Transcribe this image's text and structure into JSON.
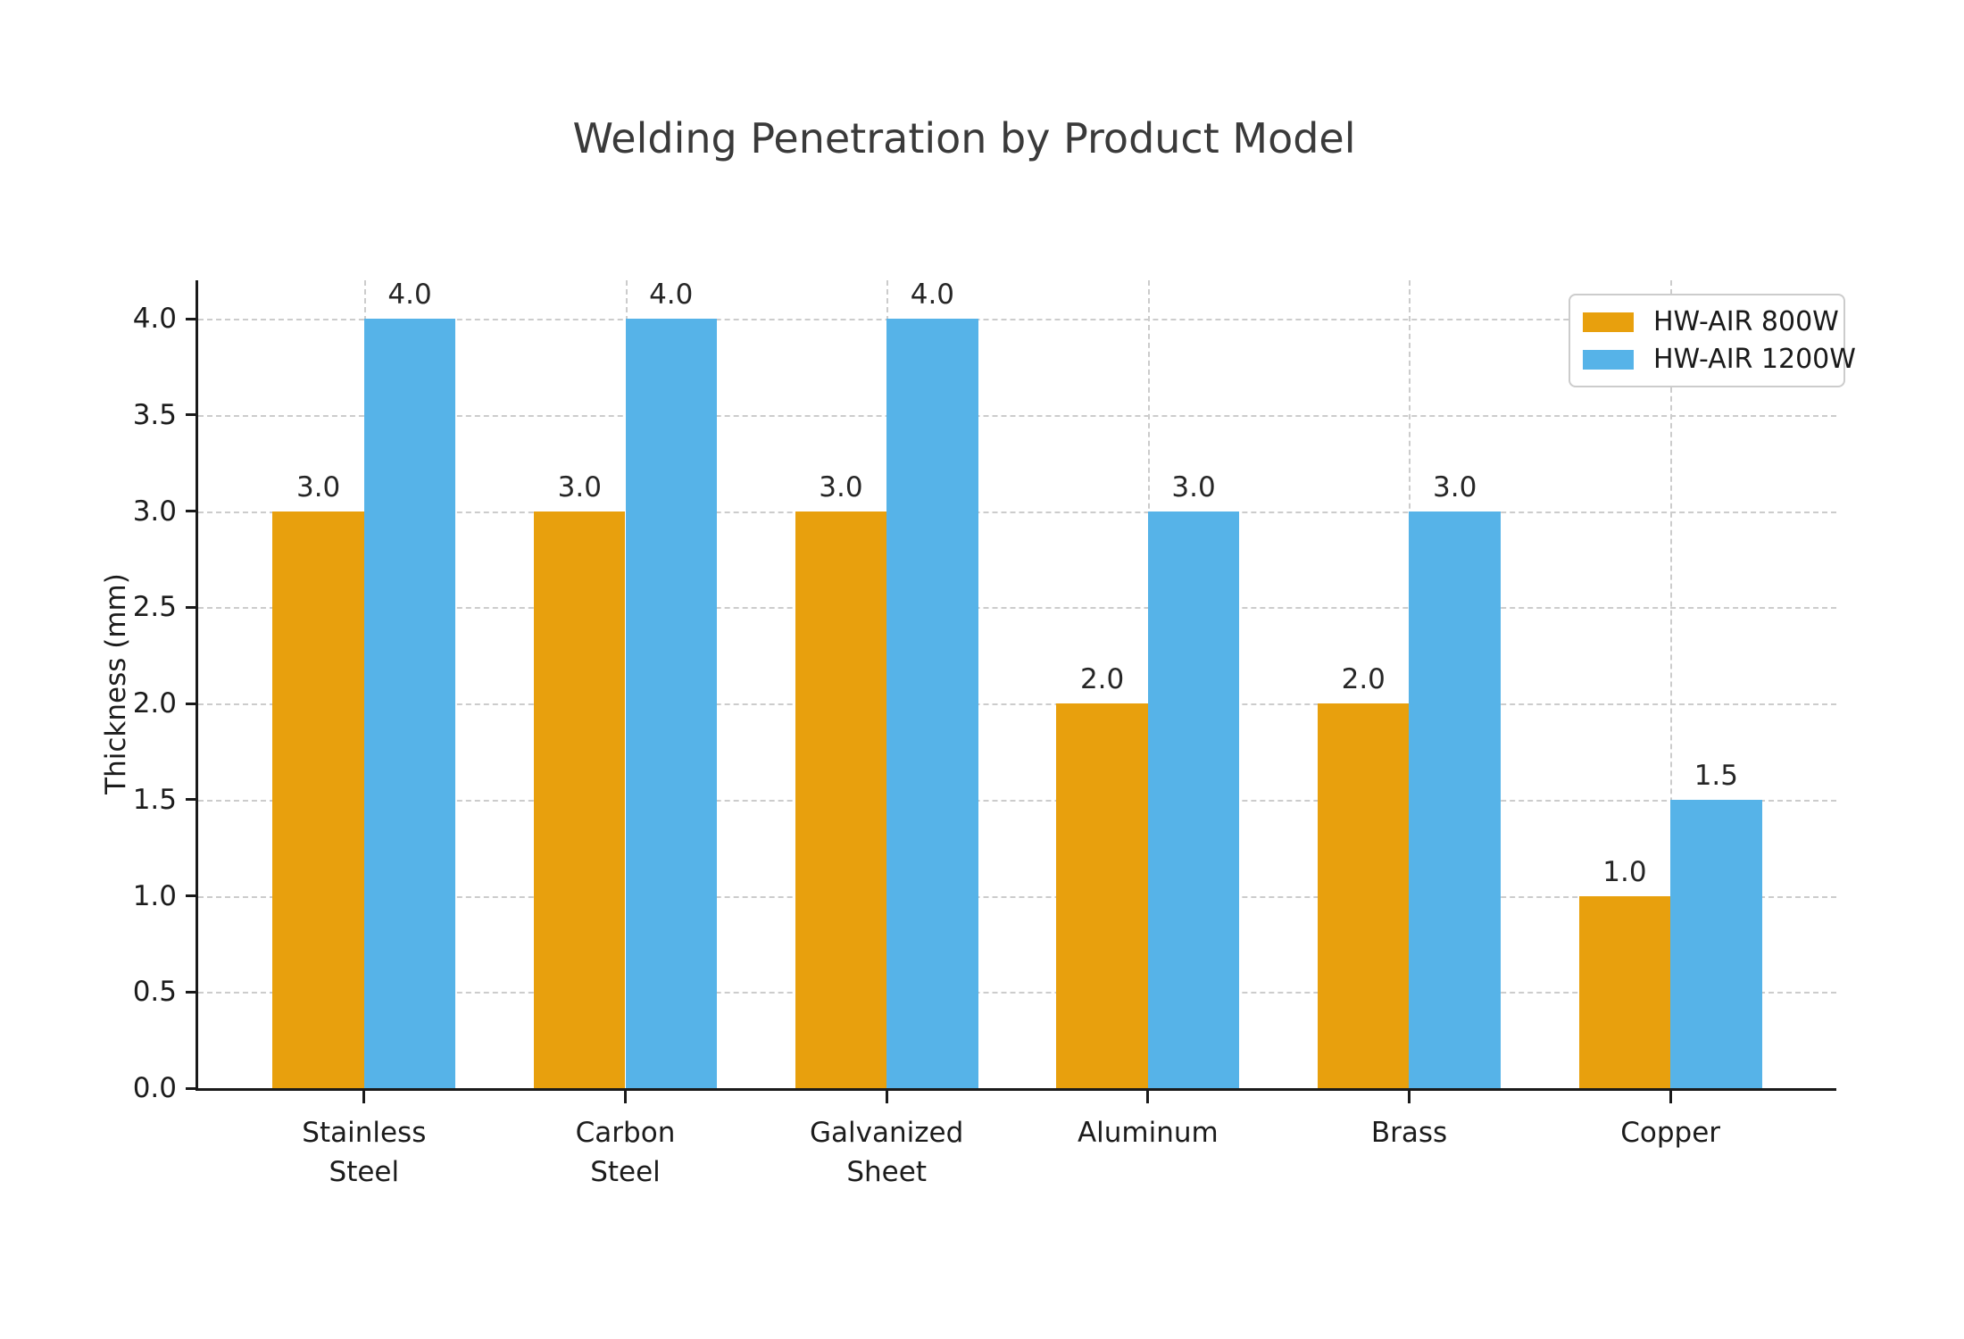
{
  "chart_data": {
    "type": "bar",
    "title": "Welding Penetration by Product Model",
    "xlabel": "",
    "ylabel": "Thickness (mm)",
    "categories": [
      "Stainless\nSteel",
      "Carbon\nSteel",
      "Galvanized\nSheet",
      "Aluminum",
      "Brass",
      "Copper"
    ],
    "series": [
      {
        "name": "HW-AIR 800W",
        "color": "#E8A00D",
        "values": [
          3.0,
          3.0,
          3.0,
          2.0,
          2.0,
          1.0
        ]
      },
      {
        "name": "HW-AIR 1200W",
        "color": "#56B3E8",
        "values": [
          4.0,
          4.0,
          4.0,
          3.0,
          3.0,
          1.5
        ]
      }
    ],
    "ylim": [
      0,
      4.2
    ],
    "yticks": [
      0.0,
      0.5,
      1.0,
      1.5,
      2.0,
      2.5,
      3.0,
      3.5,
      4.0
    ],
    "grid": true,
    "grid_style": "dashed",
    "legend_position": "upper right",
    "bar_labels": true,
    "bar_label_decimals": 1,
    "bar_width": 0.35
  }
}
